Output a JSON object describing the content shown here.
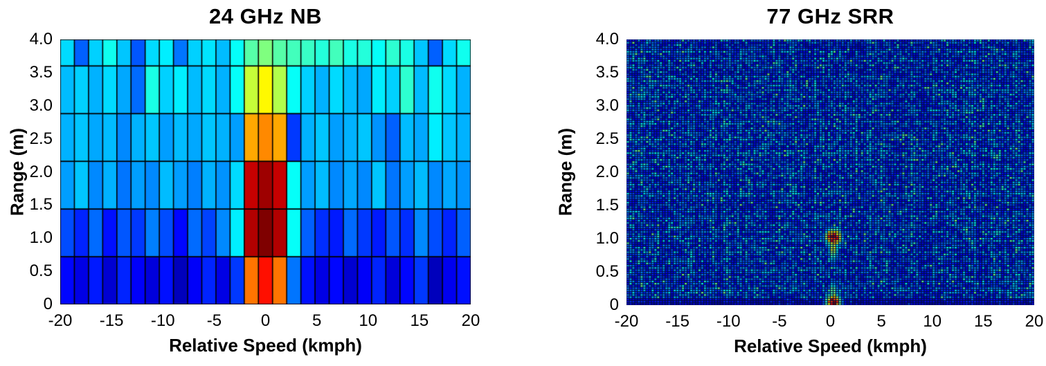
{
  "figure": {
    "background_color": "#ffffff",
    "text_color": "#000000"
  },
  "chart_data": [
    {
      "type": "heatmap",
      "title": "24 GHz NB",
      "xlabel": "Relative Speed (kmph)",
      "ylabel": "Range (m)",
      "colormap": "jet",
      "xlim": [
        -20,
        20
      ],
      "ylim": [
        0,
        4
      ],
      "x_tick_values": [
        -20,
        -15,
        -10,
        -5,
        0,
        5,
        10,
        15,
        20
      ],
      "x_tick_labels": [
        "-20",
        "-15",
        "-10",
        "-5",
        "0",
        "5",
        "10",
        "15",
        "20"
      ],
      "y_tick_values": [
        0,
        0.5,
        1.0,
        1.5,
        2.0,
        2.5,
        3.0,
        3.5,
        4.0
      ],
      "y_tick_labels": [
        "0",
        "0.5",
        "1.0",
        "1.5",
        "2.0",
        "2.5",
        "3.0",
        "3.5",
        "4.0"
      ],
      "grid_color": "#000000",
      "n_cols": 29,
      "row_edges_m": [
        0,
        0.72,
        1.44,
        2.16,
        2.88,
        3.6,
        4.0
      ],
      "note": "coarse range-Doppler map; stationary target column at 0 kmph, hot from range 0 to 2.16 m (dark red), orange to 2.88 m, yellow to 3.6 m, green at top; background blue/cyan noise",
      "values_rows_bottom_to_top": [
        [
          0.13,
          0.1,
          0.15,
          0.08,
          0.16,
          0.12,
          0.09,
          0.14,
          0.06,
          0.12,
          0.16,
          0.1,
          0.18,
          0.76,
          0.86,
          0.76,
          0.24,
          0.14,
          0.1,
          0.13,
          0.08,
          0.12,
          0.16,
          0.09,
          0.13,
          0.18,
          0.06,
          0.11,
          0.14
        ],
        [
          0.2,
          0.16,
          0.23,
          0.14,
          0.21,
          0.18,
          0.25,
          0.2,
          0.13,
          0.23,
          0.19,
          0.26,
          0.36,
          0.95,
          1.0,
          0.95,
          0.38,
          0.22,
          0.17,
          0.15,
          0.23,
          0.18,
          0.15,
          0.21,
          0.17,
          0.26,
          0.2,
          0.16,
          0.22
        ],
        [
          0.28,
          0.32,
          0.26,
          0.3,
          0.24,
          0.28,
          0.26,
          0.31,
          0.28,
          0.25,
          0.3,
          0.27,
          0.34,
          0.93,
          0.97,
          0.93,
          0.38,
          0.28,
          0.31,
          0.26,
          0.29,
          0.26,
          0.32,
          0.24,
          0.28,
          0.31,
          0.26,
          0.29,
          0.27
        ],
        [
          0.3,
          0.32,
          0.29,
          0.31,
          0.26,
          0.3,
          0.32,
          0.28,
          0.31,
          0.29,
          0.32,
          0.3,
          0.28,
          0.71,
          0.74,
          0.71,
          0.18,
          0.3,
          0.32,
          0.28,
          0.3,
          0.32,
          0.27,
          0.22,
          0.31,
          0.29,
          0.36,
          0.32,
          0.3
        ],
        [
          0.31,
          0.33,
          0.3,
          0.34,
          0.29,
          0.23,
          0.4,
          0.33,
          0.36,
          0.31,
          0.34,
          0.3,
          0.38,
          0.57,
          0.63,
          0.55,
          0.38,
          0.33,
          0.3,
          0.34,
          0.31,
          0.29,
          0.36,
          0.33,
          0.42,
          0.31,
          0.39,
          0.34,
          0.3
        ],
        [
          0.34,
          0.22,
          0.33,
          0.39,
          0.32,
          0.21,
          0.34,
          0.36,
          0.24,
          0.33,
          0.35,
          0.31,
          0.38,
          0.46,
          0.5,
          0.46,
          0.44,
          0.43,
          0.41,
          0.44,
          0.4,
          0.41,
          0.38,
          0.42,
          0.4,
          0.32,
          0.22,
          0.34,
          0.39
        ]
      ]
    },
    {
      "type": "heatmap",
      "title": "77 GHz SRR",
      "xlabel": "Relative Speed (kmph)",
      "ylabel": "Range (m)",
      "colormap": "jet",
      "xlim": [
        -20,
        20
      ],
      "ylim": [
        0,
        4
      ],
      "x_tick_values": [
        -20,
        -15,
        -10,
        -5,
        0,
        5,
        10,
        15,
        20
      ],
      "x_tick_labels": [
        "-20",
        "-15",
        "-10",
        "-5",
        "0",
        "5",
        "10",
        "15",
        "20"
      ],
      "y_tick_values": [
        0,
        0.5,
        1.0,
        1.5,
        2.0,
        2.5,
        3.0,
        3.5,
        4.0
      ],
      "y_tick_labels": [
        "0",
        "0.5",
        "1.0",
        "1.5",
        "2.0",
        "2.5",
        "3.0",
        "3.5",
        "4.0"
      ],
      "grid_color": "#02103a",
      "n_cols": 148,
      "n_rows": 118,
      "note": "fine-resolution range-Doppler map; dense blue noise texture with dark bottom band and two point targets at 0 kmph (range 1.0 m and range 0 m) with yellow/green halos",
      "noise": {
        "seed": 20240601,
        "base_min": 0.1,
        "base_span": 0.22,
        "col_mod": 0.38,
        "row_mod": 0.34,
        "sparkle_chance": 0.05,
        "sparkle_min": 0.34,
        "sparkle_span": 0.16
      },
      "bottom_band": {
        "range_below_m": 0.1,
        "factor": 0.45
      },
      "hotspots": [
        {
          "speed_kmph": 0.3,
          "range_m": 1.02,
          "sigma_speed": 0.6,
          "sigma_range": 0.1,
          "amp": 1.02
        },
        {
          "speed_kmph": 0.3,
          "range_m": 0.84,
          "sigma_speed": 0.38,
          "sigma_range": 0.15,
          "amp": 0.6
        },
        {
          "speed_kmph": 0.3,
          "range_m": 0.04,
          "sigma_speed": 0.55,
          "sigma_range": 0.1,
          "amp": 1.02
        },
        {
          "speed_kmph": 0.3,
          "range_m": 0.22,
          "sigma_speed": 0.32,
          "sigma_range": 0.11,
          "amp": 0.52
        }
      ]
    }
  ]
}
